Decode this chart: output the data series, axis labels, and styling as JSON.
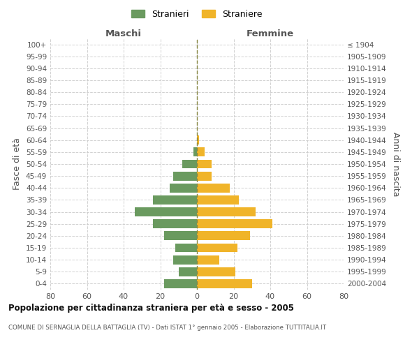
{
  "age_groups": [
    "100+",
    "95-99",
    "90-94",
    "85-89",
    "80-84",
    "75-79",
    "70-74",
    "65-69",
    "60-64",
    "55-59",
    "50-54",
    "45-49",
    "40-44",
    "35-39",
    "30-34",
    "25-29",
    "20-24",
    "15-19",
    "10-14",
    "5-9",
    "0-4"
  ],
  "birth_years": [
    "≤ 1904",
    "1905-1909",
    "1910-1914",
    "1915-1919",
    "1920-1924",
    "1925-1929",
    "1930-1934",
    "1935-1939",
    "1940-1944",
    "1945-1949",
    "1950-1954",
    "1955-1959",
    "1960-1964",
    "1965-1969",
    "1970-1974",
    "1975-1979",
    "1980-1984",
    "1985-1989",
    "1990-1994",
    "1995-1999",
    "2000-2004"
  ],
  "males": [
    0,
    0,
    0,
    0,
    0,
    0,
    0,
    0,
    0,
    2,
    8,
    13,
    15,
    24,
    34,
    24,
    18,
    12,
    13,
    10,
    18
  ],
  "females": [
    0,
    0,
    0,
    0,
    0,
    0,
    0,
    0,
    1,
    4,
    8,
    8,
    18,
    23,
    32,
    41,
    29,
    22,
    12,
    21,
    30
  ],
  "male_color": "#6a9a5f",
  "female_color": "#f0b429",
  "title": "Popolazione per cittadinanza straniera per età e sesso - 2005",
  "subtitle": "COMUNE DI SERNAGLIA DELLA BATTAGLIA (TV) - Dati ISTAT 1° gennaio 2005 - Elaborazione TUTTITALIA.IT",
  "xlabel_left": "Maschi",
  "xlabel_right": "Femmine",
  "ylabel_left": "Fasce di età",
  "ylabel_right": "Anni di nascita",
  "legend_male": "Stranieri",
  "legend_female": "Straniere",
  "xlim": 80,
  "background_color": "#ffffff",
  "grid_color": "#cccccc"
}
